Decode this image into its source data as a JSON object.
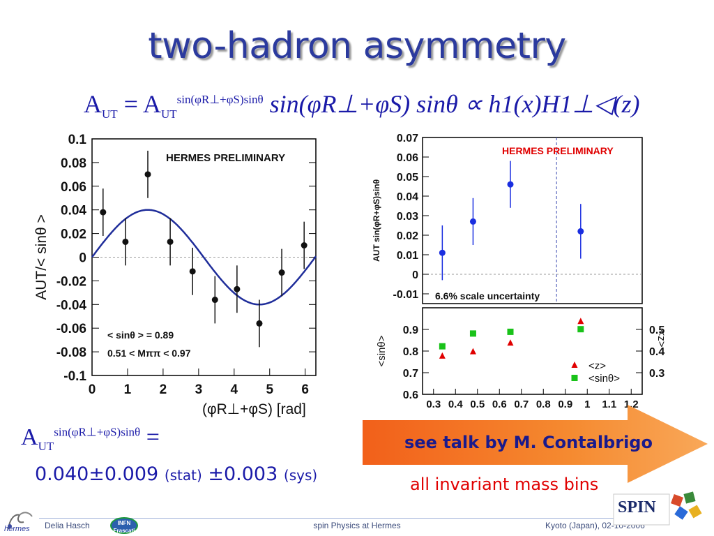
{
  "slide": {
    "title": "two-hadron asymmetry",
    "colors": {
      "title": "#2b3a9e",
      "formula": "#1a1aa8",
      "arrow": "#f36d1e",
      "highlight_red": "#e00000"
    }
  },
  "formula": {
    "A": "A",
    "UT": "UT",
    "sup": "sin(φR⊥+φS)sinθ",
    "eq": "=",
    "rhs": "sin(φR⊥+φS) sinθ ∝ h1(x)H1⊥◁(z)"
  },
  "result": {
    "amp_label": "A",
    "amp_sub": "UT",
    "amp_sup": "sin(φR⊥+φS)sinθ",
    "eq": "=",
    "value": "0.040±0.009",
    "stat": "(stat)",
    "sys_value": "±0.003",
    "sys": "(sys)"
  },
  "callout": {
    "arrow_text": "see talk by M. Contalbrigo",
    "note": "all invariant mass bins"
  },
  "footer": {
    "author": "Delia Hasch",
    "infn": [
      "INFN",
      "Frascati"
    ],
    "center": "spin Physics at Hermes",
    "right": "Kyoto (Japan), 02-10-2006",
    "hermes_logo_text": "hermes",
    "spin_logo_text": "SPIN"
  },
  "chart_data": [
    {
      "type": "scatter",
      "title": "HERMES PRELIMINARY",
      "xlabel": "(φR⊥+φS) [rad]",
      "ylabel": "AUT/< sinθ >",
      "xlim": [
        0,
        6.3
      ],
      "ylim": [
        -0.1,
        0.1
      ],
      "xticks": [
        0,
        1,
        2,
        3,
        4,
        5,
        6
      ],
      "xtick_labels": [
        "0",
        "1",
        "2",
        "3",
        "4",
        "5",
        "6"
      ],
      "yticks": [
        -0.1,
        -0.08,
        -0.06,
        -0.04,
        -0.02,
        0,
        0.02,
        0.04,
        0.06,
        0.08,
        0.1
      ],
      "ytick_labels": [
        "-0.1",
        "-0.08",
        "-0.06",
        "-0.04",
        "-0.02",
        "0",
        "0.02",
        "0.04",
        "0.06",
        "0.08",
        "0.1"
      ],
      "points": [
        {
          "x": 0.31,
          "y": 0.038,
          "err": 0.02
        },
        {
          "x": 0.94,
          "y": 0.013,
          "err": 0.02
        },
        {
          "x": 1.57,
          "y": 0.07,
          "err": 0.02
        },
        {
          "x": 2.2,
          "y": 0.013,
          "err": 0.02
        },
        {
          "x": 2.83,
          "y": -0.012,
          "err": 0.02
        },
        {
          "x": 3.46,
          "y": -0.036,
          "err": 0.02
        },
        {
          "x": 4.08,
          "y": -0.027,
          "err": 0.02
        },
        {
          "x": 4.71,
          "y": -0.056,
          "err": 0.02
        },
        {
          "x": 5.34,
          "y": -0.013,
          "err": 0.02
        },
        {
          "x": 5.97,
          "y": 0.01,
          "err": 0.02
        }
      ],
      "fit": {
        "amplitude": 0.04,
        "phase_peak": 1.57
      },
      "annotations": [
        "< sinθ > = 0.89",
        "0.51 < Mππ < 0.97"
      ],
      "colors": {
        "points": "#111111",
        "fit": "#1f2d9a"
      }
    },
    {
      "type": "scatter",
      "title": "HERMES PRELIMINARY",
      "note": "6.6% scale uncertainty",
      "ylabel": "AUT sin(φR+φS)sinθ",
      "xlim": [
        0.25,
        1.25
      ],
      "ylim": [
        -0.015,
        0.07
      ],
      "yticks": [
        -0.01,
        0,
        0.01,
        0.02,
        0.03,
        0.04,
        0.05,
        0.06,
        0.07
      ],
      "ytick_labels": [
        "-0.01",
        "0",
        "0.01",
        "0.02",
        "0.03",
        "0.04",
        "0.05",
        "0.06",
        "0.07"
      ],
      "divider_x": 0.86,
      "points": [
        {
          "x": 0.34,
          "y": 0.011,
          "err": 0.014
        },
        {
          "x": 0.48,
          "y": 0.027,
          "err": 0.012
        },
        {
          "x": 0.65,
          "y": 0.046,
          "err": 0.012
        },
        {
          "x": 0.97,
          "y": 0.022,
          "err": 0.014
        }
      ],
      "colors": {
        "points": "#1a2ee0",
        "title": "#e00000"
      }
    },
    {
      "type": "scatter",
      "ylabel": "<sinθ>",
      "ylabel_right": "<z>",
      "xlim": [
        0.25,
        1.25
      ],
      "ylim": [
        0.6,
        1.0
      ],
      "yticks": [
        0.6,
        0.7,
        0.8,
        0.9
      ],
      "ytick_labels": [
        "0.6",
        "0.7",
        "0.8",
        "0.9"
      ],
      "yticks_right": [
        "0.3",
        "0.4",
        "0.5"
      ],
      "xticks": [
        0.3,
        0.4,
        0.5,
        0.6,
        0.7,
        0.8,
        0.9,
        1,
        1.1,
        1.2
      ],
      "xtick_labels": [
        "0.3",
        "0.4",
        "0.5",
        "0.6",
        "0.7",
        "0.8",
        "0.9",
        "1",
        "1.1",
        "1.2"
      ],
      "legend": [
        "<z>",
        "<sinθ>"
      ],
      "series": [
        {
          "name": "<sinθ>",
          "marker": "square",
          "color": "#19c219",
          "x": [
            0.34,
            0.48,
            0.65,
            0.97
          ],
          "y": [
            0.822,
            0.881,
            0.889,
            0.901
          ]
        },
        {
          "name": "<z>",
          "marker": "triangle",
          "color": "#e00000",
          "x": [
            0.34,
            0.48,
            0.65,
            0.97
          ],
          "y": [
            0.778,
            0.798,
            0.838,
            0.938
          ]
        }
      ]
    }
  ]
}
